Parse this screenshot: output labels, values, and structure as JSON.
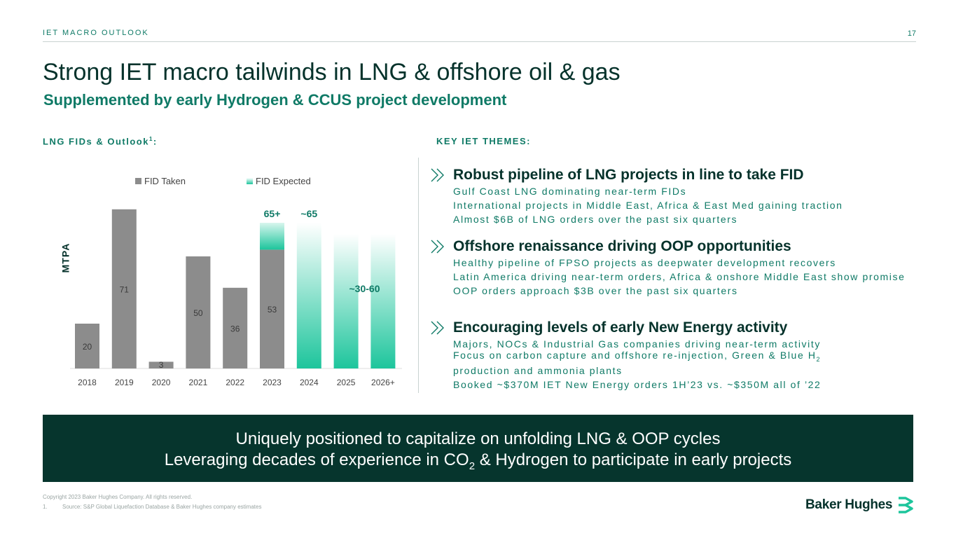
{
  "header": {
    "section_label": "IET MACRO OUTLOOK",
    "page_number": "17",
    "title": "Strong IET macro tailwinds in LNG & offshore oil & gas",
    "subtitle": "Supplemented by early Hydrogen & CCUS project development"
  },
  "left_column": {
    "heading": "LNG FIDs & Outlook",
    "heading_sup": "1",
    "heading_suffix": ":"
  },
  "right_column": {
    "heading": "KEY IET THEMES:"
  },
  "chart_data": {
    "type": "bar",
    "ylabel": "MTPA",
    "categories": [
      "2018",
      "2019",
      "2020",
      "2021",
      "2022",
      "2023",
      "2024",
      "2025",
      "2026+"
    ],
    "series": [
      {
        "name": "FID Taken",
        "values": [
          20,
          71,
          3,
          50,
          36,
          53,
          null,
          null,
          null
        ],
        "labels": [
          "20",
          "71",
          "3",
          "50",
          "36",
          "53",
          "",
          "",
          ""
        ]
      },
      {
        "name": "FID Expected",
        "values": [
          null,
          null,
          null,
          null,
          null,
          12,
          65,
          60,
          60
        ],
        "labels": [
          "",
          "",
          "",
          "",
          "",
          "65+",
          "~65",
          "",
          ""
        ]
      }
    ],
    "range_label": "~30-60",
    "colors": {
      "taken": "#8c8c8c",
      "expected": "#1dc59c"
    },
    "legend": "top"
  },
  "themes": [
    {
      "title": "Robust pipeline of LNG projects in line to take FID",
      "bullets": [
        "Gulf Coast LNG dominating near-term FIDs",
        "International projects in Middle East, Africa & East Med gaining traction",
        "Almost $6B of LNG orders over the past six quarters"
      ]
    },
    {
      "title": "Offshore renaissance driving OOP opportunities",
      "bullets": [
        "Healthy pipeline of FPSO projects as deepwater development recovers",
        "Latin America driving near-term orders, Africa & onshore Middle East show promise",
        "OOP orders approach $3B over the past six quarters"
      ]
    },
    {
      "title": "Encouraging levels of early New Energy activity",
      "bullets": [
        "Majors, NOCs & Industrial Gas companies driving near-term activity",
        "Focus on carbon capture and offshore re-injection, Green & Blue H",
        "production and ammonia plants",
        "Booked ~$370M IET New Energy orders 1H’23 vs. ~$350M all of ’22"
      ],
      "h2_sub": "2"
    }
  ],
  "banner": {
    "line1": "Uniquely positioned to capitalize on unfolding LNG & OOP cycles",
    "line2_a": "Leveraging decades of experience in CO",
    "line2_sub": "2",
    "line2_b": " & Hydrogen to participate in early projects"
  },
  "footer": {
    "copyright": "Copyright 2023 Baker Hughes Company. All rights reserved.",
    "footnote_num": "1.",
    "footnote": "Source: S&P Global Liquefaction Database & Baker Hughes company estimates",
    "logo": "Baker Hughes",
    "logo_icon": "baker-hughes-mark-icon"
  },
  "colors": {
    "dark_green": "#05322b",
    "accent_green": "#0f7a66",
    "bright_green": "#1dc59c",
    "banner_bg": "#06352d"
  }
}
